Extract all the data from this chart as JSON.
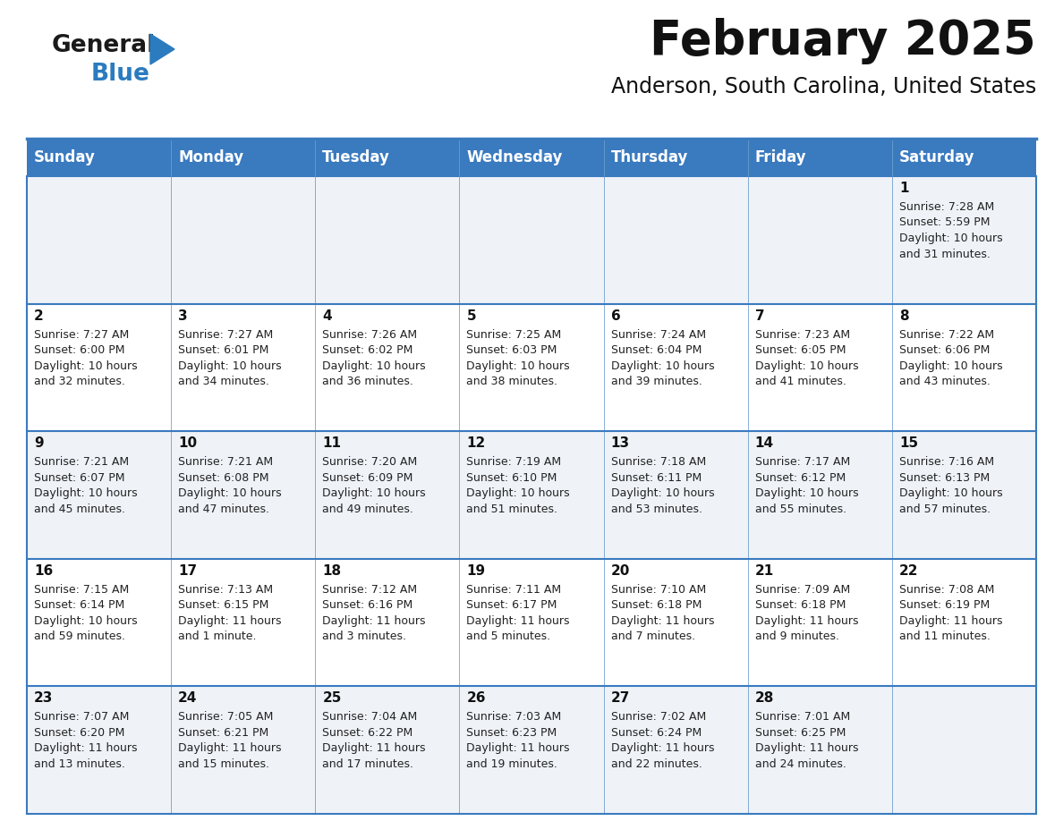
{
  "title": "February 2025",
  "subtitle": "Anderson, South Carolina, United States",
  "header_bg_color": "#3a7abf",
  "header_text_color": "#ffffff",
  "cell_bg_light": "#eff3f8",
  "cell_bg_white": "#ffffff",
  "border_color": "#3a7abf",
  "separator_color": "#3a7abf",
  "day_headers": [
    "Sunday",
    "Monday",
    "Tuesday",
    "Wednesday",
    "Thursday",
    "Friday",
    "Saturday"
  ],
  "title_color": "#111111",
  "subtitle_color": "#111111",
  "cell_text_color": "#222222",
  "day_num_color": "#111111",
  "logo_general_color": "#1a1a1a",
  "logo_blue_color": "#2b7bbf",
  "weeks": [
    [
      null,
      null,
      null,
      null,
      null,
      null,
      {
        "day": 1,
        "sunrise": "7:28 AM",
        "sunset": "5:59 PM",
        "daylight": "10 hours\nand 31 minutes."
      }
    ],
    [
      {
        "day": 2,
        "sunrise": "7:27 AM",
        "sunset": "6:00 PM",
        "daylight": "10 hours\nand 32 minutes."
      },
      {
        "day": 3,
        "sunrise": "7:27 AM",
        "sunset": "6:01 PM",
        "daylight": "10 hours\nand 34 minutes."
      },
      {
        "day": 4,
        "sunrise": "7:26 AM",
        "sunset": "6:02 PM",
        "daylight": "10 hours\nand 36 minutes."
      },
      {
        "day": 5,
        "sunrise": "7:25 AM",
        "sunset": "6:03 PM",
        "daylight": "10 hours\nand 38 minutes."
      },
      {
        "day": 6,
        "sunrise": "7:24 AM",
        "sunset": "6:04 PM",
        "daylight": "10 hours\nand 39 minutes."
      },
      {
        "day": 7,
        "sunrise": "7:23 AM",
        "sunset": "6:05 PM",
        "daylight": "10 hours\nand 41 minutes."
      },
      {
        "day": 8,
        "sunrise": "7:22 AM",
        "sunset": "6:06 PM",
        "daylight": "10 hours\nand 43 minutes."
      }
    ],
    [
      {
        "day": 9,
        "sunrise": "7:21 AM",
        "sunset": "6:07 PM",
        "daylight": "10 hours\nand 45 minutes."
      },
      {
        "day": 10,
        "sunrise": "7:21 AM",
        "sunset": "6:08 PM",
        "daylight": "10 hours\nand 47 minutes."
      },
      {
        "day": 11,
        "sunrise": "7:20 AM",
        "sunset": "6:09 PM",
        "daylight": "10 hours\nand 49 minutes."
      },
      {
        "day": 12,
        "sunrise": "7:19 AM",
        "sunset": "6:10 PM",
        "daylight": "10 hours\nand 51 minutes."
      },
      {
        "day": 13,
        "sunrise": "7:18 AM",
        "sunset": "6:11 PM",
        "daylight": "10 hours\nand 53 minutes."
      },
      {
        "day": 14,
        "sunrise": "7:17 AM",
        "sunset": "6:12 PM",
        "daylight": "10 hours\nand 55 minutes."
      },
      {
        "day": 15,
        "sunrise": "7:16 AM",
        "sunset": "6:13 PM",
        "daylight": "10 hours\nand 57 minutes."
      }
    ],
    [
      {
        "day": 16,
        "sunrise": "7:15 AM",
        "sunset": "6:14 PM",
        "daylight": "10 hours\nand 59 minutes."
      },
      {
        "day": 17,
        "sunrise": "7:13 AM",
        "sunset": "6:15 PM",
        "daylight": "11 hours\nand 1 minute."
      },
      {
        "day": 18,
        "sunrise": "7:12 AM",
        "sunset": "6:16 PM",
        "daylight": "11 hours\nand 3 minutes."
      },
      {
        "day": 19,
        "sunrise": "7:11 AM",
        "sunset": "6:17 PM",
        "daylight": "11 hours\nand 5 minutes."
      },
      {
        "day": 20,
        "sunrise": "7:10 AM",
        "sunset": "6:18 PM",
        "daylight": "11 hours\nand 7 minutes."
      },
      {
        "day": 21,
        "sunrise": "7:09 AM",
        "sunset": "6:18 PM",
        "daylight": "11 hours\nand 9 minutes."
      },
      {
        "day": 22,
        "sunrise": "7:08 AM",
        "sunset": "6:19 PM",
        "daylight": "11 hours\nand 11 minutes."
      }
    ],
    [
      {
        "day": 23,
        "sunrise": "7:07 AM",
        "sunset": "6:20 PM",
        "daylight": "11 hours\nand 13 minutes."
      },
      {
        "day": 24,
        "sunrise": "7:05 AM",
        "sunset": "6:21 PM",
        "daylight": "11 hours\nand 15 minutes."
      },
      {
        "day": 25,
        "sunrise": "7:04 AM",
        "sunset": "6:22 PM",
        "daylight": "11 hours\nand 17 minutes."
      },
      {
        "day": 26,
        "sunrise": "7:03 AM",
        "sunset": "6:23 PM",
        "daylight": "11 hours\nand 19 minutes."
      },
      {
        "day": 27,
        "sunrise": "7:02 AM",
        "sunset": "6:24 PM",
        "daylight": "11 hours\nand 22 minutes."
      },
      {
        "day": 28,
        "sunrise": "7:01 AM",
        "sunset": "6:25 PM",
        "daylight": "11 hours\nand 24 minutes."
      },
      null
    ]
  ]
}
